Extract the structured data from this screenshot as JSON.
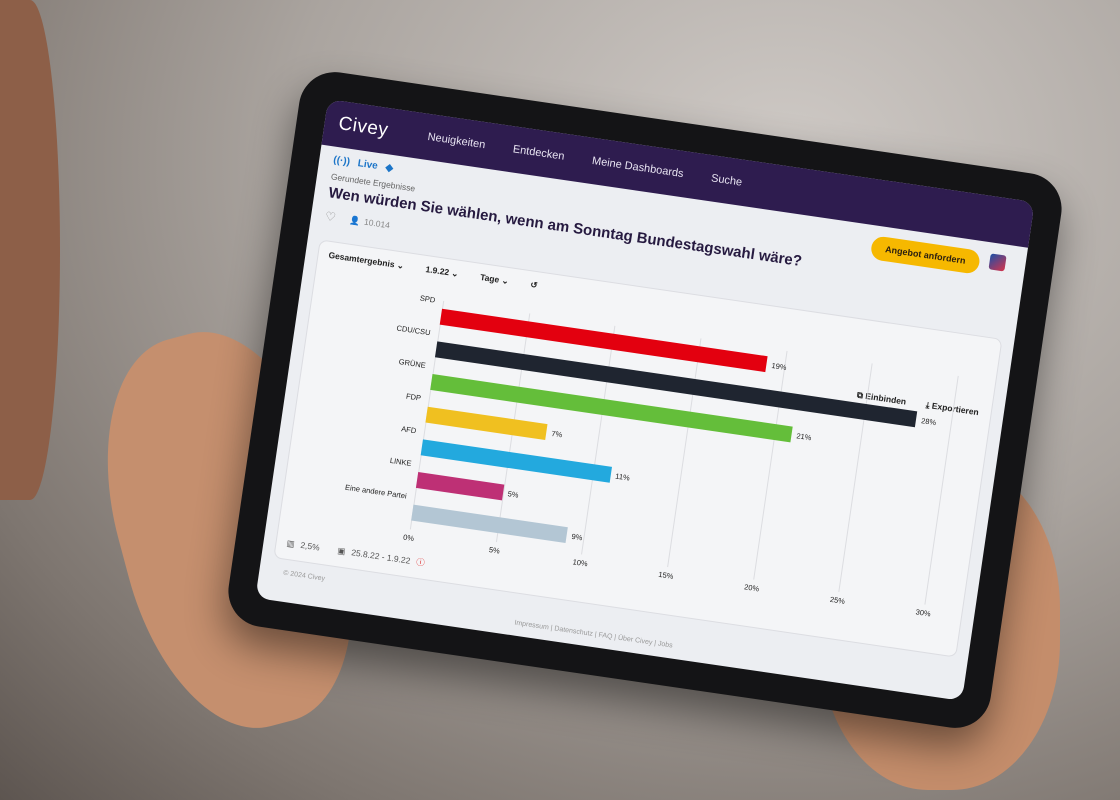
{
  "header": {
    "logo": "Civey",
    "nav": [
      "Neuigkeiten",
      "Entdecken",
      "Meine Dashboards",
      "Suche"
    ],
    "cta": "Angebot anfordern"
  },
  "question": {
    "live": "Live",
    "subtitle": "Gerundete Ergebnisse",
    "title": "Wen würden Sie wählen, wenn am Sonntag Bundestagswahl wäre?",
    "participants": "10.014"
  },
  "controls": {
    "result": "Gesamtergebnis",
    "date": "1.9.22",
    "period": "Tage"
  },
  "actions": {
    "embed": "Einbinden",
    "export": "Exportieren"
  },
  "footer": {
    "error_margin": "2,5%",
    "date_range": "25.8.22 - 1.9.22",
    "copyright": "© 2024 Civey",
    "links": "Impressum | Datenschutz | FAQ | Über Civey | Jobs"
  },
  "colors": {
    "header": "#2e1c4f",
    "accent": "#f6b800"
  },
  "chart_data": {
    "type": "bar",
    "orientation": "horizontal",
    "categories": [
      "SPD",
      "CDU/CSU",
      "GRÜNE",
      "FDP",
      "AFD",
      "LINKE",
      "Eine andere Partei"
    ],
    "values": [
      19,
      28,
      21,
      7,
      11,
      5,
      9
    ],
    "value_labels": [
      "19%",
      "28%",
      "21%",
      "7%",
      "11%",
      "5%",
      "9%"
    ],
    "colors": [
      "#e3000f",
      "#1f2530",
      "#64be3a",
      "#f0c020",
      "#23a9de",
      "#be3075",
      "#b3c6d4"
    ],
    "xlim": [
      0,
      30
    ],
    "ticks": [
      "0%",
      "5%",
      "10%",
      "15%",
      "20%",
      "25%",
      "30%"
    ],
    "grid": true
  }
}
